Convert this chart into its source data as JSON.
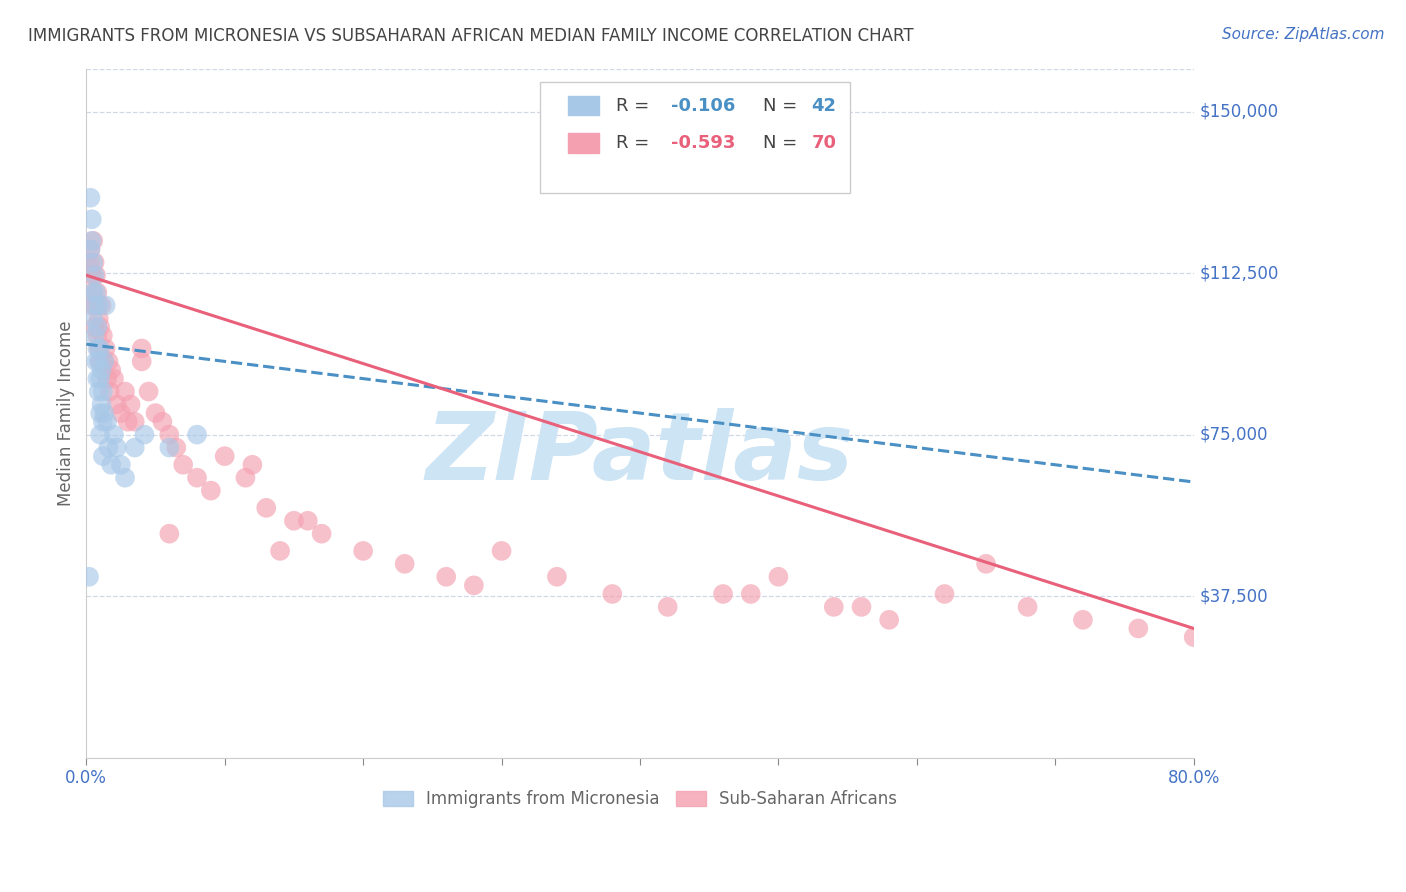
{
  "title": "IMMIGRANTS FROM MICRONESIA VS SUBSAHARAN AFRICAN MEDIAN FAMILY INCOME CORRELATION CHART",
  "source": "Source: ZipAtlas.com",
  "ylabel": "Median Family Income",
  "yticks": [
    0,
    37500,
    75000,
    112500,
    150000
  ],
  "ytick_labels": [
    "",
    "$37,500",
    "$75,000",
    "$112,500",
    "$150,000"
  ],
  "xlim": [
    0.0,
    0.8
  ],
  "ylim": [
    0,
    160000
  ],
  "watermark": "ZIPatlas",
  "legend_r1": "-0.106",
  "legend_n1": "42",
  "legend_r2": "-0.593",
  "legend_n2": "70",
  "legend_label1": "Immigrants from Micronesia",
  "legend_label2": "Sub-Saharan Africans",
  "blue_color": "#a8c8e8",
  "pink_color": "#f4a0b0",
  "blue_line_color": "#4a90c4",
  "pink_line_color": "#e8607a",
  "title_color": "#333333",
  "axis_label_color": "#666666",
  "ytick_color": "#4472c4",
  "grid_color": "#d0d8e8",
  "watermark_color": "#cde4f4",
  "micronesia_x": [
    0.002,
    0.003,
    0.003,
    0.004,
    0.004,
    0.005,
    0.005,
    0.005,
    0.006,
    0.006,
    0.006,
    0.007,
    0.007,
    0.008,
    0.008,
    0.008,
    0.009,
    0.009,
    0.009,
    0.01,
    0.01,
    0.01,
    0.011,
    0.011,
    0.012,
    0.012,
    0.013,
    0.013,
    0.014,
    0.015,
    0.016,
    0.018,
    0.02,
    0.022,
    0.025,
    0.028,
    0.035,
    0.042,
    0.06,
    0.08,
    0.01,
    0.012
  ],
  "micronesia_y": [
    42000,
    130000,
    118000,
    125000,
    120000,
    115000,
    108000,
    102000,
    98000,
    112000,
    105000,
    92000,
    108000,
    88000,
    100000,
    95000,
    105000,
    92000,
    85000,
    80000,
    95000,
    88000,
    82000,
    90000,
    78000,
    85000,
    92000,
    80000,
    105000,
    78000,
    72000,
    68000,
    75000,
    72000,
    68000,
    65000,
    72000,
    75000,
    72000,
    75000,
    75000,
    70000
  ],
  "subsaharan_x": [
    0.002,
    0.003,
    0.004,
    0.004,
    0.005,
    0.005,
    0.006,
    0.006,
    0.007,
    0.007,
    0.008,
    0.008,
    0.009,
    0.009,
    0.01,
    0.01,
    0.011,
    0.012,
    0.013,
    0.014,
    0.015,
    0.016,
    0.017,
    0.018,
    0.02,
    0.022,
    0.025,
    0.028,
    0.03,
    0.032,
    0.035,
    0.04,
    0.045,
    0.05,
    0.055,
    0.06,
    0.065,
    0.07,
    0.08,
    0.09,
    0.1,
    0.115,
    0.13,
    0.15,
    0.17,
    0.2,
    0.23,
    0.26,
    0.3,
    0.34,
    0.38,
    0.42,
    0.46,
    0.5,
    0.54,
    0.58,
    0.62,
    0.65,
    0.68,
    0.72,
    0.76,
    0.8,
    0.04,
    0.14,
    0.16,
    0.28,
    0.48,
    0.56,
    0.06,
    0.12
  ],
  "subsaharan_y": [
    115000,
    118000,
    112000,
    105000,
    120000,
    108000,
    115000,
    100000,
    112000,
    105000,
    108000,
    98000,
    102000,
    95000,
    100000,
    92000,
    105000,
    98000,
    92000,
    95000,
    88000,
    92000,
    85000,
    90000,
    88000,
    82000,
    80000,
    85000,
    78000,
    82000,
    78000,
    92000,
    85000,
    80000,
    78000,
    75000,
    72000,
    68000,
    65000,
    62000,
    70000,
    65000,
    58000,
    55000,
    52000,
    48000,
    45000,
    42000,
    48000,
    42000,
    38000,
    35000,
    38000,
    42000,
    35000,
    32000,
    38000,
    45000,
    35000,
    32000,
    30000,
    28000,
    95000,
    48000,
    55000,
    40000,
    38000,
    35000,
    52000,
    68000
  ]
}
